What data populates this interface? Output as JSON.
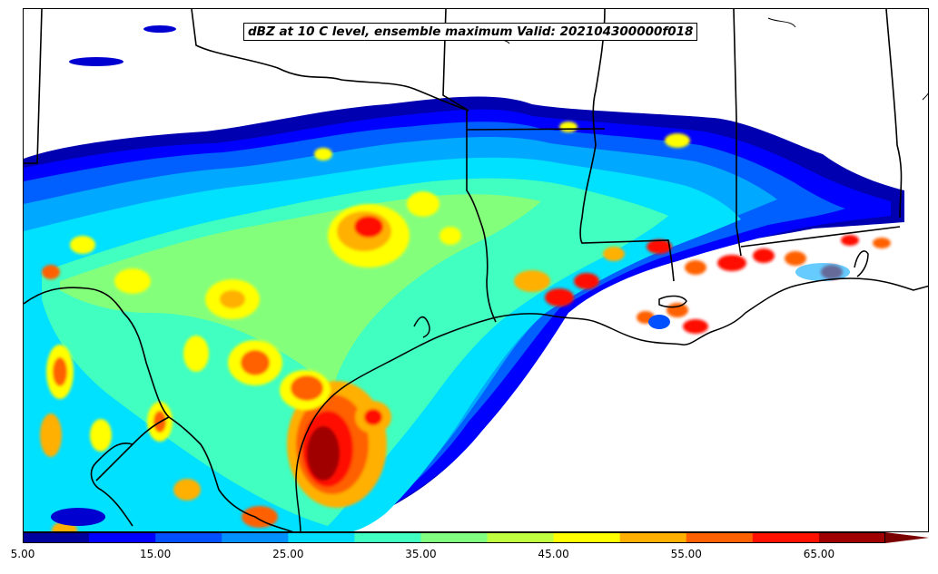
{
  "title": "dBZ at 10 C level, ensemble maximum Valid: 202104300000f018",
  "colorbar": {
    "levels": [
      5,
      10,
      15,
      20,
      25,
      30,
      35,
      40,
      45,
      50,
      55,
      60,
      65,
      70
    ],
    "colors": [
      "#00009f",
      "#0000ff",
      "#0050ff",
      "#0090ff",
      "#00ddff",
      "#40ffc0",
      "#80ff80",
      "#c0ff40",
      "#ffff00",
      "#ffb000",
      "#ff6000",
      "#ff1000",
      "#a00000"
    ],
    "extend_color": "#7a0000",
    "tick_labels": [
      "5.00",
      "15.00",
      "25.00",
      "35.00",
      "45.00",
      "55.00",
      "65.00"
    ]
  },
  "map": {
    "field": "reflectivity",
    "units": "dBZ",
    "region": "Texas / Louisiana / Gulf Coast"
  }
}
